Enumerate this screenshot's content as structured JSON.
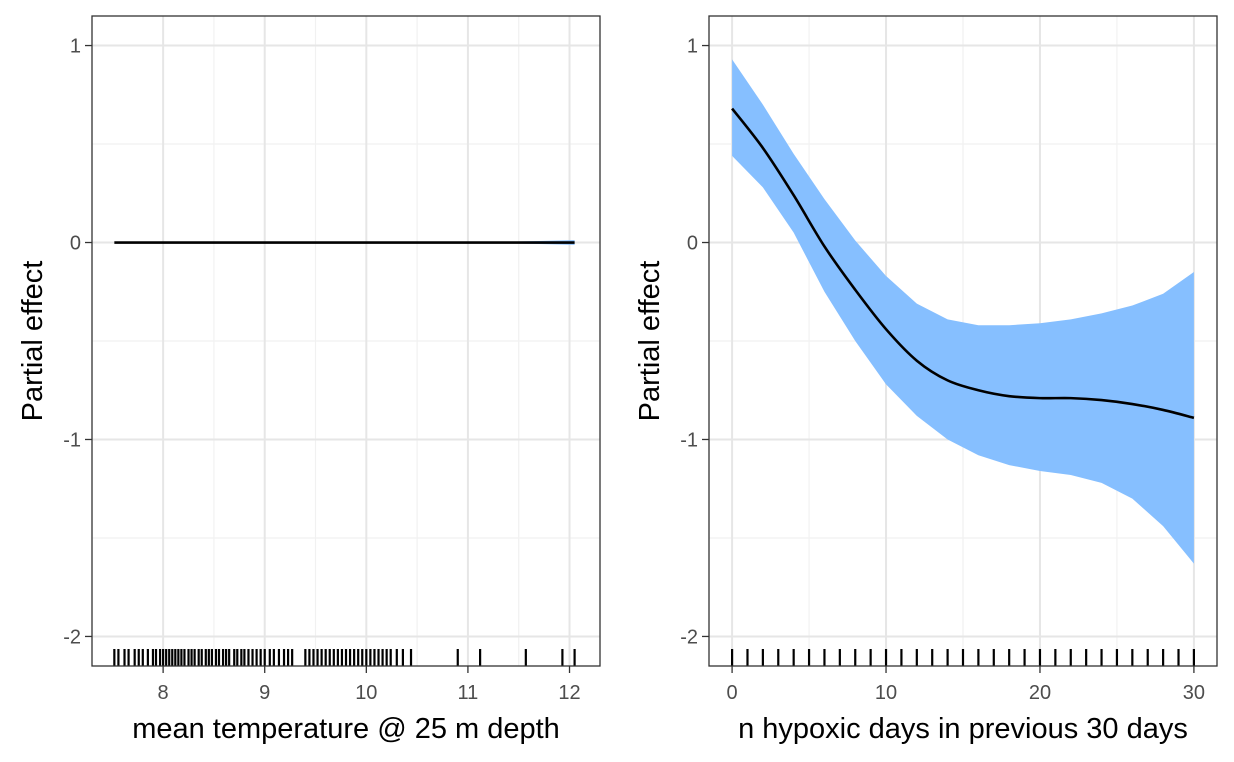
{
  "chart_data": [
    {
      "type": "line",
      "title": "",
      "xlabel": "mean temperature @ 25 m depth",
      "ylabel": "Partial effect",
      "xlim": [
        7.3,
        12.3
      ],
      "ylim": [
        -2.15,
        1.15
      ],
      "x_ticks": [
        8,
        9,
        10,
        11,
        12
      ],
      "y_ticks": [
        1,
        0,
        -1,
        -2
      ],
      "x_tick_labels": [
        "8",
        "9",
        "10",
        "11",
        "12"
      ],
      "y_tick_labels": [
        "1",
        "0",
        "-1",
        "-2"
      ],
      "grid": true,
      "legend": "none",
      "series": [
        {
          "x": [
            7.52,
            8.0,
            8.5,
            9.0,
            9.5,
            10.0,
            10.5,
            11.0,
            11.5,
            12.05
          ],
          "y": [
            0,
            0,
            0,
            0,
            0,
            0,
            0,
            0,
            0,
            0
          ],
          "ci_lower": [
            0,
            0,
            0,
            0,
            0,
            0,
            0,
            0,
            -0.005,
            -0.012
          ],
          "ci_upper": [
            0,
            0,
            0,
            0,
            0,
            0,
            0,
            0,
            0.005,
            0.012
          ]
        }
      ],
      "rug": [
        7.52,
        7.56,
        7.62,
        7.66,
        7.72,
        7.76,
        7.8,
        7.85,
        7.9,
        7.93,
        7.97,
        8.0,
        8.03,
        8.06,
        8.09,
        8.12,
        8.15,
        8.18,
        8.21,
        8.25,
        8.28,
        8.31,
        8.35,
        8.38,
        8.42,
        8.45,
        8.48,
        8.52,
        8.55,
        8.59,
        8.62,
        8.65,
        8.7,
        8.73,
        8.77,
        8.8,
        8.84,
        8.88,
        8.92,
        8.96,
        9.0,
        9.05,
        9.09,
        9.14,
        9.19,
        9.23,
        9.27,
        9.4,
        9.44,
        9.48,
        9.52,
        9.56,
        9.6,
        9.64,
        9.68,
        9.72,
        9.76,
        9.8,
        9.84,
        9.88,
        9.92,
        9.96,
        10.0,
        10.04,
        10.08,
        10.12,
        10.16,
        10.2,
        10.24,
        10.3,
        10.36,
        10.44,
        10.9,
        11.12,
        11.57,
        11.93,
        12.05
      ],
      "colors": {
        "line": "#000000",
        "ribbon": "#86bfff"
      }
    },
    {
      "type": "line",
      "title": "",
      "xlabel": "n hypoxic days in previous 30 days",
      "ylabel": "Partial effect",
      "xlim": [
        -1.5,
        31.5
      ],
      "ylim": [
        -2.15,
        1.15
      ],
      "x_ticks": [
        0,
        10,
        20,
        30
      ],
      "y_ticks": [
        1,
        0,
        -1,
        -2
      ],
      "x_tick_labels": [
        "0",
        "10",
        "20",
        "30"
      ],
      "y_tick_labels": [
        "1",
        "0",
        "-1",
        "-2"
      ],
      "grid": true,
      "legend": "none",
      "series": [
        {
          "x": [
            0,
            2,
            4,
            6,
            8,
            10,
            12,
            14,
            16,
            18,
            20,
            22,
            24,
            26,
            28,
            30
          ],
          "y": [
            0.68,
            0.48,
            0.24,
            -0.02,
            -0.24,
            -0.44,
            -0.6,
            -0.7,
            -0.75,
            -0.78,
            -0.79,
            -0.79,
            -0.8,
            -0.82,
            -0.85,
            -0.89
          ],
          "ci_lower": [
            0.44,
            0.28,
            0.05,
            -0.25,
            -0.5,
            -0.72,
            -0.88,
            -1.0,
            -1.08,
            -1.13,
            -1.16,
            -1.18,
            -1.22,
            -1.3,
            -1.44,
            -1.63
          ],
          "ci_upper": [
            0.93,
            0.7,
            0.45,
            0.22,
            0.01,
            -0.17,
            -0.31,
            -0.39,
            -0.42,
            -0.42,
            -0.41,
            -0.39,
            -0.36,
            -0.32,
            -0.26,
            -0.15
          ]
        }
      ],
      "rug": [
        0,
        1,
        2,
        3,
        4,
        5,
        6,
        7,
        8,
        9,
        10,
        11,
        12,
        13,
        14,
        15,
        16,
        17,
        18,
        19,
        20,
        21,
        22,
        23,
        24,
        25,
        26,
        27,
        28,
        29,
        30
      ],
      "colors": {
        "line": "#000000",
        "ribbon": "#86bfff"
      }
    }
  ]
}
